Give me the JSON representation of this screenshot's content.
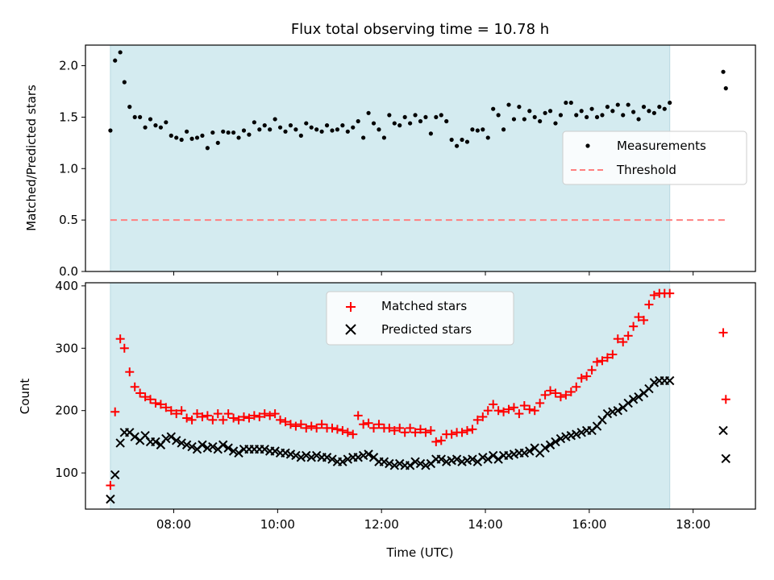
{
  "chart_data": [
    {
      "type": "scatter",
      "title": "Flux total observing time = 10.78 h",
      "xlabel": "",
      "ylabel": "Matched/Predicted stars",
      "ylim": [
        0,
        2.2
      ],
      "yticks": [
        "0.0",
        "0.5",
        "1.0",
        "1.5",
        "2.0"
      ],
      "ytick_values": [
        0,
        0.5,
        1.0,
        1.5,
        2.0
      ],
      "x_unit": "hours UTC",
      "xlim": [
        6.3,
        19.2
      ],
      "shaded_span": [
        6.78,
        17.55
      ],
      "shaded_color": "#d4ebf0",
      "legend_position": "center-right",
      "series": [
        {
          "name": "Measurements",
          "marker": "dot",
          "color": "#000000",
          "x": [
            6.78,
            6.87,
            6.97,
            7.05,
            7.15,
            7.25,
            7.35,
            7.45,
            7.55,
            7.65,
            7.75,
            7.85,
            7.95,
            8.05,
            8.15,
            8.25,
            8.35,
            8.45,
            8.55,
            8.65,
            8.75,
            8.85,
            8.95,
            9.05,
            9.15,
            9.25,
            9.35,
            9.45,
            9.55,
            9.65,
            9.75,
            9.85,
            9.95,
            10.05,
            10.15,
            10.25,
            10.35,
            10.45,
            10.55,
            10.65,
            10.75,
            10.85,
            10.95,
            11.05,
            11.15,
            11.25,
            11.35,
            11.45,
            11.55,
            11.65,
            11.75,
            11.85,
            11.95,
            12.05,
            12.15,
            12.25,
            12.35,
            12.45,
            12.55,
            12.65,
            12.75,
            12.85,
            12.95,
            13.05,
            13.15,
            13.25,
            13.35,
            13.45,
            13.55,
            13.65,
            13.75,
            13.85,
            13.95,
            14.05,
            14.15,
            14.25,
            14.35,
            14.45,
            14.55,
            14.65,
            14.75,
            14.85,
            14.95,
            15.05,
            15.15,
            15.25,
            15.35,
            15.45,
            15.55,
            15.65,
            15.75,
            15.85,
            15.95,
            16.05,
            16.15,
            16.25,
            16.35,
            16.45,
            16.55,
            16.65,
            16.75,
            16.85,
            16.95,
            17.05,
            17.15,
            17.25,
            17.35,
            17.45,
            17.55,
            18.58,
            18.63
          ],
          "values": [
            1.37,
            2.05,
            2.13,
            1.84,
            1.6,
            1.5,
            1.5,
            1.4,
            1.48,
            1.42,
            1.4,
            1.45,
            1.32,
            1.3,
            1.28,
            1.36,
            1.29,
            1.3,
            1.32,
            1.2,
            1.35,
            1.25,
            1.36,
            1.35,
            1.35,
            1.3,
            1.37,
            1.33,
            1.45,
            1.38,
            1.42,
            1.38,
            1.48,
            1.4,
            1.36,
            1.42,
            1.38,
            1.32,
            1.44,
            1.4,
            1.38,
            1.36,
            1.42,
            1.37,
            1.38,
            1.42,
            1.36,
            1.4,
            1.46,
            1.3,
            1.54,
            1.44,
            1.38,
            1.3,
            1.52,
            1.44,
            1.42,
            1.5,
            1.44,
            1.52,
            1.46,
            1.5,
            1.34,
            1.5,
            1.52,
            1.46,
            1.28,
            1.22,
            1.28,
            1.26,
            1.38,
            1.37,
            1.38,
            1.3,
            1.58,
            1.52,
            1.38,
            1.62,
            1.48,
            1.6,
            1.48,
            1.56,
            1.5,
            1.46,
            1.54,
            1.56,
            1.44,
            1.52,
            1.64,
            1.64,
            1.52,
            1.56,
            1.5,
            1.58,
            1.5,
            1.52,
            1.6,
            1.56,
            1.62,
            1.52,
            1.62,
            1.55,
            1.48,
            1.6,
            1.56,
            1.54,
            1.6,
            1.58,
            1.64,
            1.94,
            1.78
          ]
        },
        {
          "name": "Threshold",
          "marker": "dashed-line",
          "color": "#ff8080",
          "x": [
            6.78,
            18.63
          ],
          "values": [
            0.5,
            0.5
          ]
        }
      ]
    },
    {
      "type": "scatter",
      "title": "",
      "xlabel": "Time (UTC)",
      "ylabel": "Count",
      "ylim": [
        42,
        405
      ],
      "yticks": [
        "100",
        "200",
        "300",
        "400"
      ],
      "ytick_values": [
        100,
        200,
        300,
        400
      ],
      "xticks": [
        "08:00",
        "10:00",
        "12:00",
        "14:00",
        "16:00",
        "18:00"
      ],
      "xtick_values": [
        8,
        10,
        12,
        14,
        16,
        18
      ],
      "x_unit": "hours UTC",
      "xlim": [
        6.3,
        19.2
      ],
      "shaded_span": [
        6.78,
        17.55
      ],
      "shaded_color": "#d4ebf0",
      "legend_position": "top-center",
      "series": [
        {
          "name": "Matched stars",
          "marker": "plus",
          "color": "#ff0000",
          "x": [
            6.78,
            6.87,
            6.97,
            7.05,
            7.15,
            7.25,
            7.35,
            7.45,
            7.55,
            7.65,
            7.75,
            7.85,
            7.95,
            8.05,
            8.15,
            8.25,
            8.35,
            8.45,
            8.55,
            8.65,
            8.75,
            8.85,
            8.95,
            9.05,
            9.15,
            9.25,
            9.35,
            9.45,
            9.55,
            9.65,
            9.75,
            9.85,
            9.95,
            10.05,
            10.15,
            10.25,
            10.35,
            10.45,
            10.55,
            10.65,
            10.75,
            10.85,
            10.95,
            11.05,
            11.15,
            11.25,
            11.35,
            11.45,
            11.55,
            11.65,
            11.75,
            11.85,
            11.95,
            12.05,
            12.15,
            12.25,
            12.35,
            12.45,
            12.55,
            12.65,
            12.75,
            12.85,
            12.95,
            13.05,
            13.15,
            13.25,
            13.35,
            13.45,
            13.55,
            13.65,
            13.75,
            13.85,
            13.95,
            14.05,
            14.15,
            14.25,
            14.35,
            14.45,
            14.55,
            14.65,
            14.75,
            14.85,
            14.95,
            15.05,
            15.15,
            15.25,
            15.35,
            15.45,
            15.55,
            15.65,
            15.75,
            15.85,
            15.95,
            16.05,
            16.15,
            16.25,
            16.35,
            16.45,
            16.55,
            16.65,
            16.75,
            16.85,
            16.95,
            17.05,
            17.15,
            17.25,
            17.35,
            17.45,
            17.55,
            18.58,
            18.63
          ],
          "values": [
            80,
            198,
            315,
            300,
            262,
            238,
            228,
            222,
            218,
            212,
            210,
            205,
            200,
            195,
            200,
            188,
            185,
            195,
            190,
            192,
            185,
            195,
            185,
            195,
            188,
            185,
            190,
            188,
            192,
            190,
            195,
            192,
            195,
            185,
            182,
            178,
            175,
            178,
            172,
            175,
            172,
            178,
            172,
            172,
            170,
            168,
            165,
            162,
            192,
            178,
            180,
            172,
            178,
            172,
            172,
            168,
            172,
            165,
            172,
            165,
            170,
            165,
            168,
            150,
            152,
            162,
            162,
            165,
            165,
            168,
            170,
            185,
            190,
            200,
            210,
            200,
            198,
            202,
            205,
            195,
            208,
            202,
            200,
            212,
            225,
            232,
            228,
            222,
            225,
            230,
            238,
            252,
            255,
            265,
            278,
            280,
            285,
            290,
            315,
            310,
            320,
            335,
            350,
            345,
            370,
            385,
            388,
            388,
            388,
            325,
            218
          ]
        },
        {
          "name": "Predicted stars",
          "marker": "x",
          "color": "#000000",
          "x": [
            6.78,
            6.87,
            6.97,
            7.05,
            7.15,
            7.25,
            7.35,
            7.45,
            7.55,
            7.65,
            7.75,
            7.85,
            7.95,
            8.05,
            8.15,
            8.25,
            8.35,
            8.45,
            8.55,
            8.65,
            8.75,
            8.85,
            8.95,
            9.05,
            9.15,
            9.25,
            9.35,
            9.45,
            9.55,
            9.65,
            9.75,
            9.85,
            9.95,
            10.05,
            10.15,
            10.25,
            10.35,
            10.45,
            10.55,
            10.65,
            10.75,
            10.85,
            10.95,
            11.05,
            11.15,
            11.25,
            11.35,
            11.45,
            11.55,
            11.65,
            11.75,
            11.85,
            11.95,
            12.05,
            12.15,
            12.25,
            12.35,
            12.45,
            12.55,
            12.65,
            12.75,
            12.85,
            12.95,
            13.05,
            13.15,
            13.25,
            13.35,
            13.45,
            13.55,
            13.65,
            13.75,
            13.85,
            13.95,
            14.05,
            14.15,
            14.25,
            14.35,
            14.45,
            14.55,
            14.65,
            14.75,
            14.85,
            14.95,
            15.05,
            15.15,
            15.25,
            15.35,
            15.45,
            15.55,
            15.65,
            15.75,
            15.85,
            15.95,
            16.05,
            16.15,
            16.25,
            16.35,
            16.45,
            16.55,
            16.65,
            16.75,
            16.85,
            16.95,
            17.05,
            17.15,
            17.25,
            17.35,
            17.45,
            17.55,
            18.58,
            18.63
          ],
          "values": [
            58,
            97,
            148,
            165,
            165,
            158,
            152,
            160,
            150,
            150,
            145,
            155,
            158,
            152,
            148,
            145,
            142,
            138,
            145,
            140,
            142,
            138,
            145,
            140,
            135,
            132,
            138,
            138,
            138,
            138,
            138,
            135,
            135,
            132,
            132,
            130,
            128,
            125,
            128,
            125,
            128,
            125,
            125,
            122,
            118,
            118,
            122,
            125,
            125,
            128,
            130,
            125,
            118,
            118,
            115,
            112,
            115,
            112,
            112,
            118,
            115,
            112,
            115,
            122,
            122,
            118,
            120,
            122,
            118,
            120,
            122,
            118,
            125,
            122,
            128,
            122,
            128,
            128,
            130,
            132,
            132,
            135,
            140,
            132,
            140,
            145,
            150,
            155,
            158,
            160,
            162,
            165,
            168,
            168,
            175,
            185,
            195,
            198,
            200,
            205,
            212,
            218,
            222,
            228,
            235,
            245,
            248,
            248,
            248,
            168,
            123
          ]
        }
      ]
    }
  ]
}
